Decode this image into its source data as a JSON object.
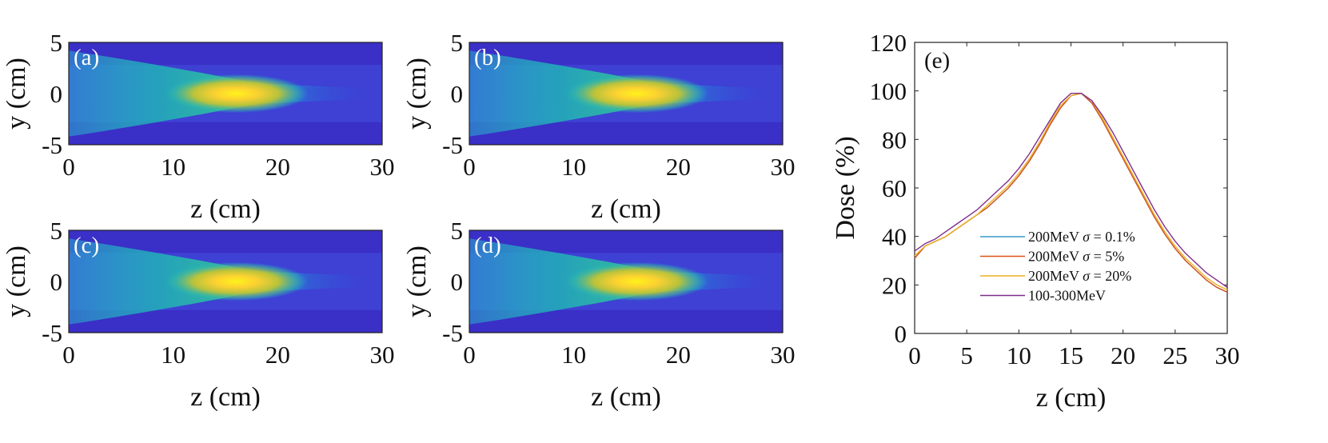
{
  "chart_data": [
    {
      "type": "heatmap",
      "panel": "(a)",
      "xlabel": "z (cm)",
      "ylabel": "y (cm)",
      "xlim": [
        0,
        30
      ],
      "ylim": [
        -5,
        5
      ],
      "xticks": [
        "0",
        "10",
        "20",
        "30"
      ],
      "yticks": [
        "5",
        "0",
        "-5"
      ],
      "peak_z": 16,
      "colormap": "parula"
    },
    {
      "type": "heatmap",
      "panel": "(b)",
      "xlabel": "z (cm)",
      "ylabel": "y (cm)",
      "xlim": [
        0,
        30
      ],
      "ylim": [
        -5,
        5
      ],
      "xticks": [
        "0",
        "10",
        "20",
        "30"
      ],
      "yticks": [
        "5",
        "0",
        "-5"
      ],
      "peak_z": 16,
      "colormap": "parula"
    },
    {
      "type": "heatmap",
      "panel": "(c)",
      "xlabel": "z (cm)",
      "ylabel": "y (cm)",
      "xlim": [
        0,
        30
      ],
      "ylim": [
        -5,
        5
      ],
      "xticks": [
        "0",
        "10",
        "20",
        "30"
      ],
      "yticks": [
        "5",
        "0",
        "-5"
      ],
      "peak_z": 16,
      "colormap": "parula"
    },
    {
      "type": "heatmap",
      "panel": "(d)",
      "xlabel": "z (cm)",
      "ylabel": "y (cm)",
      "xlim": [
        0,
        30
      ],
      "ylim": [
        -5,
        5
      ],
      "xticks": [
        "0",
        "10",
        "20",
        "30"
      ],
      "yticks": [
        "5",
        "0",
        "-5"
      ],
      "peak_z": 16,
      "colormap": "parula"
    },
    {
      "type": "line",
      "panel": "(e)",
      "xlabel": "z (cm)",
      "ylabel": "Dose  (%)",
      "xlim": [
        0,
        30
      ],
      "ylim": [
        0,
        120
      ],
      "xticks": [
        "0",
        "5",
        "10",
        "15",
        "20",
        "25",
        "30"
      ],
      "yticks": [
        "0",
        "20",
        "40",
        "60",
        "80",
        "100",
        "120"
      ],
      "legend_position": "center-left",
      "x": [
        0,
        1,
        2,
        3,
        4,
        5,
        6,
        7,
        8,
        9,
        10,
        11,
        12,
        13,
        14,
        15,
        16,
        17,
        18,
        19,
        20,
        21,
        22,
        23,
        24,
        25,
        26,
        27,
        28,
        29,
        30
      ],
      "series": [
        {
          "legend_parts": [
            "200MeV ",
            "σ",
            " = 0.1%"
          ],
          "color": "#3a9ac9",
          "values": [
            31,
            36,
            38,
            40,
            43,
            46,
            49,
            52,
            56,
            60,
            65,
            71,
            78,
            86,
            93,
            98,
            99,
            95,
            88,
            80,
            72,
            64,
            56,
            48,
            41,
            35,
            30,
            26,
            22,
            19,
            17
          ]
        },
        {
          "legend_parts": [
            "200MeV ",
            "σ",
            " = 5%"
          ],
          "color": "#d95319",
          "values": [
            31,
            36,
            38,
            40,
            43,
            46,
            49,
            52,
            56,
            60,
            65,
            71,
            78,
            86,
            93,
            98,
            99,
            95,
            88,
            80,
            72,
            64,
            56,
            48,
            41,
            35,
            30,
            26,
            22,
            19,
            17
          ]
        },
        {
          "legend_parts": [
            "200MeV ",
            "σ",
            " = 20%"
          ],
          "color": "#edb120",
          "values": [
            32,
            36,
            38,
            40,
            43,
            46,
            49,
            53,
            57,
            61,
            66,
            72,
            79,
            87,
            94,
            98,
            99,
            96,
            89,
            81,
            73,
            65,
            57,
            49,
            42,
            36,
            31,
            27,
            23,
            20,
            18
          ]
        },
        {
          "legend_parts": [
            "100-300MeV",
            "",
            ""
          ],
          "color": "#7e2f8e",
          "values": [
            34,
            37,
            39,
            42,
            45,
            48,
            51,
            55,
            59,
            63,
            68,
            74,
            81,
            88,
            95,
            99,
            99,
            96,
            90,
            83,
            75,
            67,
            59,
            51,
            44,
            38,
            33,
            29,
            25,
            22,
            19
          ]
        }
      ]
    }
  ]
}
